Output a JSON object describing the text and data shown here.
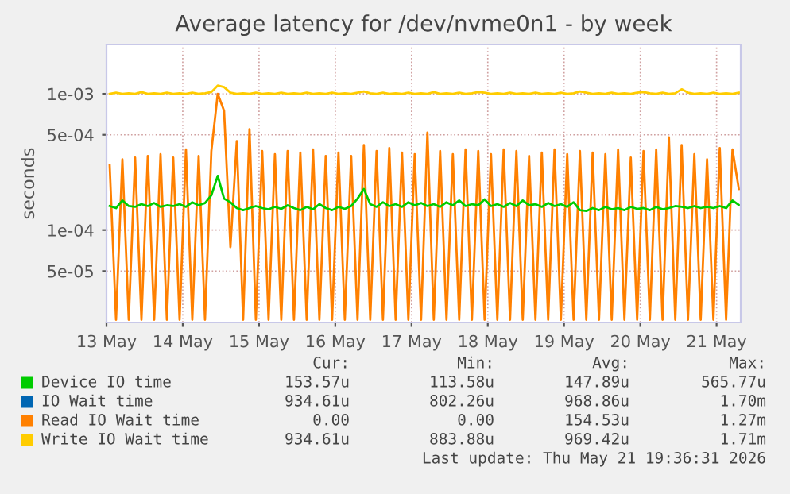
{
  "chart_data": {
    "type": "line",
    "title": "Average latency for /dev/nvme0n1 - by week",
    "ylabel": "seconds",
    "log": "y",
    "grid": true,
    "legend": "bottom",
    "x": [
      "2026-05-13T13:00",
      "2026-05-13T15:00",
      "2026-05-13T17:00",
      "2026-05-13T19:00",
      "2026-05-13T21:00",
      "2026-05-13T23:00",
      "2026-05-14T01:00",
      "2026-05-14T03:00",
      "2026-05-14T05:00",
      "2026-05-14T07:00",
      "2026-05-14T09:00",
      "2026-05-14T11:00",
      "2026-05-14T13:00",
      "2026-05-14T15:00",
      "2026-05-14T17:00",
      "2026-05-14T19:00",
      "2026-05-14T21:00",
      "2026-05-14T23:00",
      "2026-05-15T01:00",
      "2026-05-15T03:00",
      "2026-05-15T05:00",
      "2026-05-15T07:00",
      "2026-05-15T09:00",
      "2026-05-15T11:00",
      "2026-05-15T13:00",
      "2026-05-15T15:00",
      "2026-05-15T17:00",
      "2026-05-15T19:00",
      "2026-05-15T21:00",
      "2026-05-15T23:00",
      "2026-05-16T01:00",
      "2026-05-16T03:00",
      "2026-05-16T05:00",
      "2026-05-16T07:00",
      "2026-05-16T09:00",
      "2026-05-16T11:00",
      "2026-05-16T13:00",
      "2026-05-16T15:00",
      "2026-05-16T17:00",
      "2026-05-16T19:00",
      "2026-05-16T21:00",
      "2026-05-16T23:00",
      "2026-05-17T01:00",
      "2026-05-17T03:00",
      "2026-05-17T05:00",
      "2026-05-17T07:00",
      "2026-05-17T09:00",
      "2026-05-17T11:00",
      "2026-05-17T13:00",
      "2026-05-17T15:00",
      "2026-05-17T17:00",
      "2026-05-17T19:00",
      "2026-05-17T21:00",
      "2026-05-17T23:00",
      "2026-05-18T01:00",
      "2026-05-18T03:00",
      "2026-05-18T05:00",
      "2026-05-18T07:00",
      "2026-05-18T09:00",
      "2026-05-18T11:00",
      "2026-05-18T13:00",
      "2026-05-18T15:00",
      "2026-05-18T17:00",
      "2026-05-18T19:00",
      "2026-05-18T21:00",
      "2026-05-18T23:00",
      "2026-05-19T01:00",
      "2026-05-19T03:00",
      "2026-05-19T05:00",
      "2026-05-19T07:00",
      "2026-05-19T09:00",
      "2026-05-19T11:00",
      "2026-05-19T13:00",
      "2026-05-19T15:00",
      "2026-05-19T17:00",
      "2026-05-19T19:00",
      "2026-05-19T21:00",
      "2026-05-19T23:00",
      "2026-05-20T01:00",
      "2026-05-20T03:00",
      "2026-05-20T05:00",
      "2026-05-20T07:00",
      "2026-05-20T09:00",
      "2026-05-20T11:00",
      "2026-05-20T13:00",
      "2026-05-20T15:00",
      "2026-05-20T17:00",
      "2026-05-20T19:00",
      "2026-05-20T21:00",
      "2026-05-20T23:00",
      "2026-05-21T01:00",
      "2026-05-21T03:00",
      "2026-05-21T05:00",
      "2026-05-21T07:00",
      "2026-05-21T09:00",
      "2026-05-21T11:00",
      "2026-05-21T13:00",
      "2026-05-21T15:00",
      "2026-05-21T17:00",
      "2026-05-21T19:00"
    ],
    "xlim": [
      "2026-05-13T12:00",
      "2026-05-21T19:36"
    ],
    "xticks": [
      {
        "value": "2026-05-13T12:00",
        "label": "13 May"
      },
      {
        "value": "2026-05-14T12:00",
        "label": "14 May"
      },
      {
        "value": "2026-05-15T12:00",
        "label": "15 May"
      },
      {
        "value": "2026-05-16T12:00",
        "label": "16 May"
      },
      {
        "value": "2026-05-17T12:00",
        "label": "17 May"
      },
      {
        "value": "2026-05-18T12:00",
        "label": "18 May"
      },
      {
        "value": "2026-05-19T12:00",
        "label": "19 May"
      },
      {
        "value": "2026-05-20T12:00",
        "label": "20 May"
      },
      {
        "value": "2026-05-21T12:00",
        "label": "21 May"
      }
    ],
    "ylim": [
      2.1e-05,
      0.0023
    ],
    "yticks": [
      {
        "value": 5e-05,
        "label": "5e-05"
      },
      {
        "value": 0.0001,
        "label": "1e-04"
      },
      {
        "value": 0.0005,
        "label": "5e-04"
      },
      {
        "value": 0.001,
        "label": "1e-03"
      }
    ],
    "series": [
      {
        "name": "Device IO time",
        "color": "#00cc00",
        "values": [
          0.00015,
          0.000145,
          0.000165,
          0.00015,
          0.000148,
          0.000155,
          0.00015,
          0.000158,
          0.000148,
          0.000152,
          0.00015,
          0.000155,
          0.000148,
          0.00016,
          0.000152,
          0.000158,
          0.00018,
          0.00025,
          0.00017,
          0.00016,
          0.000145,
          0.00014,
          0.000145,
          0.00015,
          0.000145,
          0.000142,
          0.000148,
          0.000143,
          0.000152,
          0.000145,
          0.00014,
          0.000148,
          0.000142,
          0.000155,
          0.000145,
          0.00014,
          0.000148,
          0.000143,
          0.00015,
          0.00017,
          0.0002,
          0.000155,
          0.000148,
          0.00016,
          0.00015,
          0.000155,
          0.000148,
          0.00016,
          0.000152,
          0.000158,
          0.00015,
          0.000155,
          0.000148,
          0.00016,
          0.000152,
          0.000165,
          0.00015,
          0.000155,
          0.000152,
          0.000168,
          0.00015,
          0.000155,
          0.000148,
          0.000158,
          0.00015,
          0.000165,
          0.000152,
          0.000155,
          0.000148,
          0.000158,
          0.00015,
          0.000155,
          0.000148,
          0.00016,
          0.00014,
          0.000138,
          0.000145,
          0.00014,
          0.000148,
          0.000142,
          0.000145,
          0.00014,
          0.000148,
          0.000143,
          0.000145,
          0.00014,
          0.000148,
          0.000142,
          0.000145,
          0.00015,
          0.000148,
          0.000145,
          0.00015,
          0.000145,
          0.000148,
          0.000145,
          0.00015,
          0.000145,
          0.000165,
          0.000153
        ]
      },
      {
        "name": "IO Wait time",
        "color": "#0066b3",
        "values": [
          null,
          null,
          null,
          null,
          null,
          null,
          null,
          null,
          null,
          null,
          null,
          null,
          null,
          null,
          null,
          null,
          null,
          null,
          null,
          null,
          null,
          null,
          null,
          null,
          null,
          null,
          null,
          null,
          null,
          null,
          null,
          null,
          null,
          null,
          null,
          null,
          null,
          null,
          null,
          null,
          null,
          null,
          null,
          null,
          null,
          null,
          null,
          null,
          null,
          null,
          null,
          null,
          null,
          null,
          null,
          null,
          null,
          null,
          null,
          null,
          null,
          null,
          null,
          null,
          null,
          null,
          null,
          null,
          null,
          null,
          null,
          null,
          null,
          null,
          null,
          null,
          null,
          null,
          null,
          null,
          null,
          null,
          null,
          null,
          null,
          null,
          null,
          null,
          null,
          null,
          null,
          null,
          null,
          null,
          null,
          null,
          null,
          null,
          null,
          null
        ]
      },
      {
        "name": "Read IO Wait time",
        "color": "#ff8000",
        "values": [
          0.0003,
          2.2e-05,
          0.00033,
          2.2e-05,
          0.00034,
          2.2e-05,
          0.00035,
          2.2e-05,
          0.00036,
          2.2e-05,
          0.00034,
          2.2e-05,
          0.00039,
          2.2e-05,
          0.00035,
          2.2e-05,
          0.00038,
          0.001,
          0.00075,
          7.5e-05,
          0.00045,
          2.2e-05,
          0.00055,
          2.2e-05,
          0.00038,
          2.2e-05,
          0.00036,
          2.2e-05,
          0.00038,
          2.2e-05,
          0.00037,
          2.2e-05,
          0.00039,
          2.2e-05,
          0.00035,
          2.2e-05,
          0.00037,
          2.2e-05,
          0.00035,
          2.2e-05,
          0.00042,
          2.2e-05,
          0.00038,
          2.2e-05,
          0.0004,
          2.2e-05,
          0.00037,
          2.2e-05,
          0.00036,
          2.2e-05,
          0.00052,
          2.2e-05,
          0.00038,
          2.2e-05,
          0.00036,
          2.2e-05,
          0.00039,
          2.2e-05,
          0.00038,
          2.2e-05,
          0.00036,
          2.2e-05,
          0.00039,
          2.2e-05,
          0.00038,
          2.2e-05,
          0.00035,
          2.2e-05,
          0.00037,
          2.2e-05,
          0.00039,
          2.2e-05,
          0.00036,
          2.2e-05,
          0.00038,
          2.2e-05,
          0.00037,
          2.2e-05,
          0.00036,
          2.2e-05,
          0.00039,
          2.2e-05,
          0.00034,
          2.2e-05,
          0.00038,
          2.2e-05,
          0.00039,
          2.2e-05,
          0.00048,
          2.2e-05,
          0.00042,
          2.2e-05,
          0.00036,
          2.2e-05,
          0.00033,
          2.2e-05,
          0.0004,
          2.2e-05,
          0.00039,
          0.0002
        ]
      },
      {
        "name": "Write IO Wait time",
        "color": "#ffcc00",
        "values": [
          0.001,
          0.00102,
          0.001,
          0.00101,
          0.001,
          0.00103,
          0.001,
          0.00101,
          0.001,
          0.00102,
          0.001,
          0.00101,
          0.001,
          0.00102,
          0.001,
          0.00101,
          0.00103,
          0.00115,
          0.00112,
          0.00102,
          0.001,
          0.00101,
          0.001,
          0.00102,
          0.001,
          0.00101,
          0.001,
          0.00102,
          0.001,
          0.00101,
          0.001,
          0.00102,
          0.001,
          0.00101,
          0.001,
          0.00102,
          0.001,
          0.00101,
          0.001,
          0.00102,
          0.00104,
          0.00101,
          0.001,
          0.00102,
          0.001,
          0.00101,
          0.001,
          0.00102,
          0.001,
          0.00101,
          0.001,
          0.00103,
          0.001,
          0.00101,
          0.001,
          0.00102,
          0.001,
          0.00101,
          0.00103,
          0.00102,
          0.001,
          0.00101,
          0.001,
          0.00102,
          0.001,
          0.00101,
          0.001,
          0.00102,
          0.001,
          0.00101,
          0.001,
          0.00102,
          0.001,
          0.00101,
          0.00104,
          0.00102,
          0.001,
          0.00101,
          0.001,
          0.00102,
          0.001,
          0.00101,
          0.001,
          0.00102,
          0.00103,
          0.00101,
          0.001,
          0.00102,
          0.001,
          0.00101,
          0.00108,
          0.00102,
          0.001,
          0.00101,
          0.001,
          0.00102,
          0.001,
          0.00101,
          0.001,
          0.00102
        ]
      }
    ],
    "annotations": [
      "Cur:",
      "Min:",
      "Avg:",
      "Max:",
      "153.57u",
      "113.58u",
      "147.89u",
      "565.77u",
      "934.61u",
      "802.26u",
      "968.86u",
      "1.70m",
      "0.00",
      "0.00",
      "154.53u",
      "1.27m",
      "934.61u",
      "883.88u",
      "969.42u",
      "1.71m",
      "Last update: Thu May 21 19:36:31 2026"
    ]
  }
}
